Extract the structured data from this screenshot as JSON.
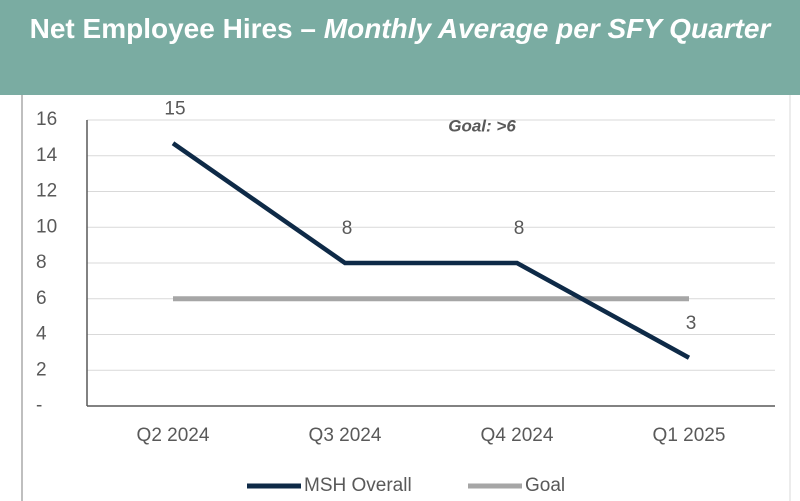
{
  "chart_data": {
    "type": "line",
    "title": "Net Employee Hires –",
    "subtitle": "Monthly Average per SFY Quarter",
    "categories": [
      "Q2 2024",
      "Q3 2024",
      "Q4 2024",
      "Q1 2025"
    ],
    "series": [
      {
        "name": "MSH Overall",
        "color": "#0e2a47",
        "values": [
          14.7,
          8,
          8,
          2.7
        ],
        "value_labels": [
          "15",
          "8",
          "8",
          "3"
        ]
      },
      {
        "name": "Goal",
        "color": "#a6a6a6",
        "values": [
          6,
          6,
          6,
          6
        ]
      }
    ],
    "annotation": "Goal: >6",
    "ylim": [
      0,
      16
    ],
    "yticks": [
      {
        "value": 0,
        "label": "-"
      },
      2,
      4,
      6,
      8,
      10,
      12,
      14,
      16
    ],
    "grid": true,
    "legend": "bottom"
  }
}
